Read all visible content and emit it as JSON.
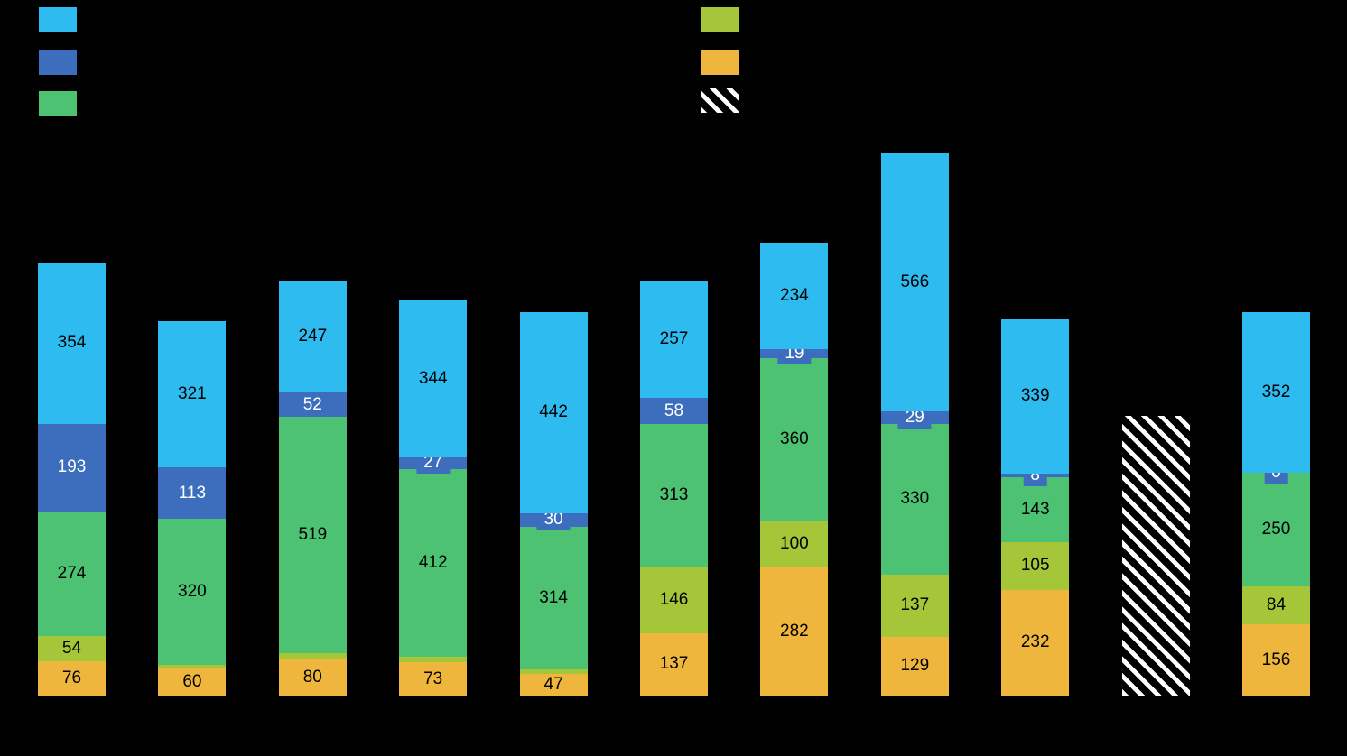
{
  "chart_data": {
    "type": "bar",
    "stacked": true,
    "background": "#000000",
    "axis_labels_visible": false,
    "grid": false,
    "value_label_color": "#000000",
    "series": [
      {
        "key": "orange",
        "color": "#EFB63E",
        "boxed": false
      },
      {
        "key": "yellow-green",
        "color": "#A6C63A",
        "boxed": false
      },
      {
        "key": "green",
        "color": "#4DC273",
        "boxed": false
      },
      {
        "key": "dark-blue",
        "color": "#3D6EBE",
        "boxed": true,
        "label_color": "#FFFFFF"
      },
      {
        "key": "light-blue",
        "color": "#2EBCF0",
        "boxed": false
      }
    ],
    "bars": [
      {
        "segments": [
          {
            "v": 76,
            "label": "76"
          },
          {
            "v": 54,
            "label": "54"
          },
          {
            "v": 274,
            "label": "274"
          },
          {
            "v": 193,
            "label": "193"
          },
          {
            "v": 354,
            "label": "354"
          }
        ]
      },
      {
        "segments": [
          {
            "v": 60,
            "label": "60"
          },
          {
            "v": 8,
            "label": ""
          },
          {
            "v": 320,
            "label": "320"
          },
          {
            "v": 113,
            "label": "113"
          },
          {
            "v": 321,
            "label": "321"
          }
        ]
      },
      {
        "segments": [
          {
            "v": 80,
            "label": "80"
          },
          {
            "v": 14,
            "label": ""
          },
          {
            "v": 519,
            "label": "519"
          },
          {
            "v": 52,
            "label": "52"
          },
          {
            "v": 247,
            "label": "247"
          }
        ]
      },
      {
        "segments": [
          {
            "v": 73,
            "label": "73"
          },
          {
            "v": 12,
            "label": ""
          },
          {
            "v": 412,
            "label": "412"
          },
          {
            "v": 27,
            "label": "27"
          },
          {
            "v": 344,
            "label": "344"
          }
        ]
      },
      {
        "segments": [
          {
            "v": 47,
            "label": "47"
          },
          {
            "v": 10,
            "label": ""
          },
          {
            "v": 314,
            "label": "314"
          },
          {
            "v": 30,
            "label": "30"
          },
          {
            "v": 442,
            "label": "442"
          }
        ]
      },
      {
        "segments": [
          {
            "v": 137,
            "label": "137"
          },
          {
            "v": 146,
            "label": "146"
          },
          {
            "v": 313,
            "label": "313"
          },
          {
            "v": 58,
            "label": "58"
          },
          {
            "v": 257,
            "label": "257"
          }
        ]
      },
      {
        "segments": [
          {
            "v": 282,
            "label": "282"
          },
          {
            "v": 100,
            "label": "100"
          },
          {
            "v": 360,
            "label": "360"
          },
          {
            "v": 19,
            "label": "19"
          },
          {
            "v": 234,
            "label": "234"
          }
        ]
      },
      {
        "segments": [
          {
            "v": 129,
            "label": "129"
          },
          {
            "v": 137,
            "label": "137"
          },
          {
            "v": 330,
            "label": "330"
          },
          {
            "v": 29,
            "label": "29"
          },
          {
            "v": 566,
            "label": "566"
          }
        ]
      },
      {
        "segments": [
          {
            "v": 232,
            "label": "232"
          },
          {
            "v": 105,
            "label": "105"
          },
          {
            "v": 143,
            "label": "143"
          },
          {
            "v": 8,
            "label": "8"
          },
          {
            "v": 339,
            "label": "339"
          }
        ]
      },
      {
        "hatched": true,
        "estimated_total": 615,
        "pattern": "white-diagonal-hatch",
        "segments": []
      },
      {
        "segments": [
          {
            "v": 156,
            "label": "156"
          },
          {
            "v": 84,
            "label": "84"
          },
          {
            "v": 250,
            "label": "250"
          },
          {
            "v": 0,
            "label": "0"
          },
          {
            "v": 352,
            "label": "352"
          }
        ]
      }
    ]
  },
  "legend": {
    "left_swatches": [
      {
        "name": "light-blue",
        "color": "#2EBCF0"
      },
      {
        "name": "dark-blue",
        "color": "#3D6EBE"
      },
      {
        "name": "green",
        "color": "#4DC273"
      }
    ],
    "right_swatches": [
      {
        "name": "yellow-green",
        "color": "#A6C63A"
      },
      {
        "name": "orange",
        "color": "#EFB63E"
      },
      {
        "name": "hatched",
        "color": "white-diagonal-hatch"
      }
    ]
  }
}
